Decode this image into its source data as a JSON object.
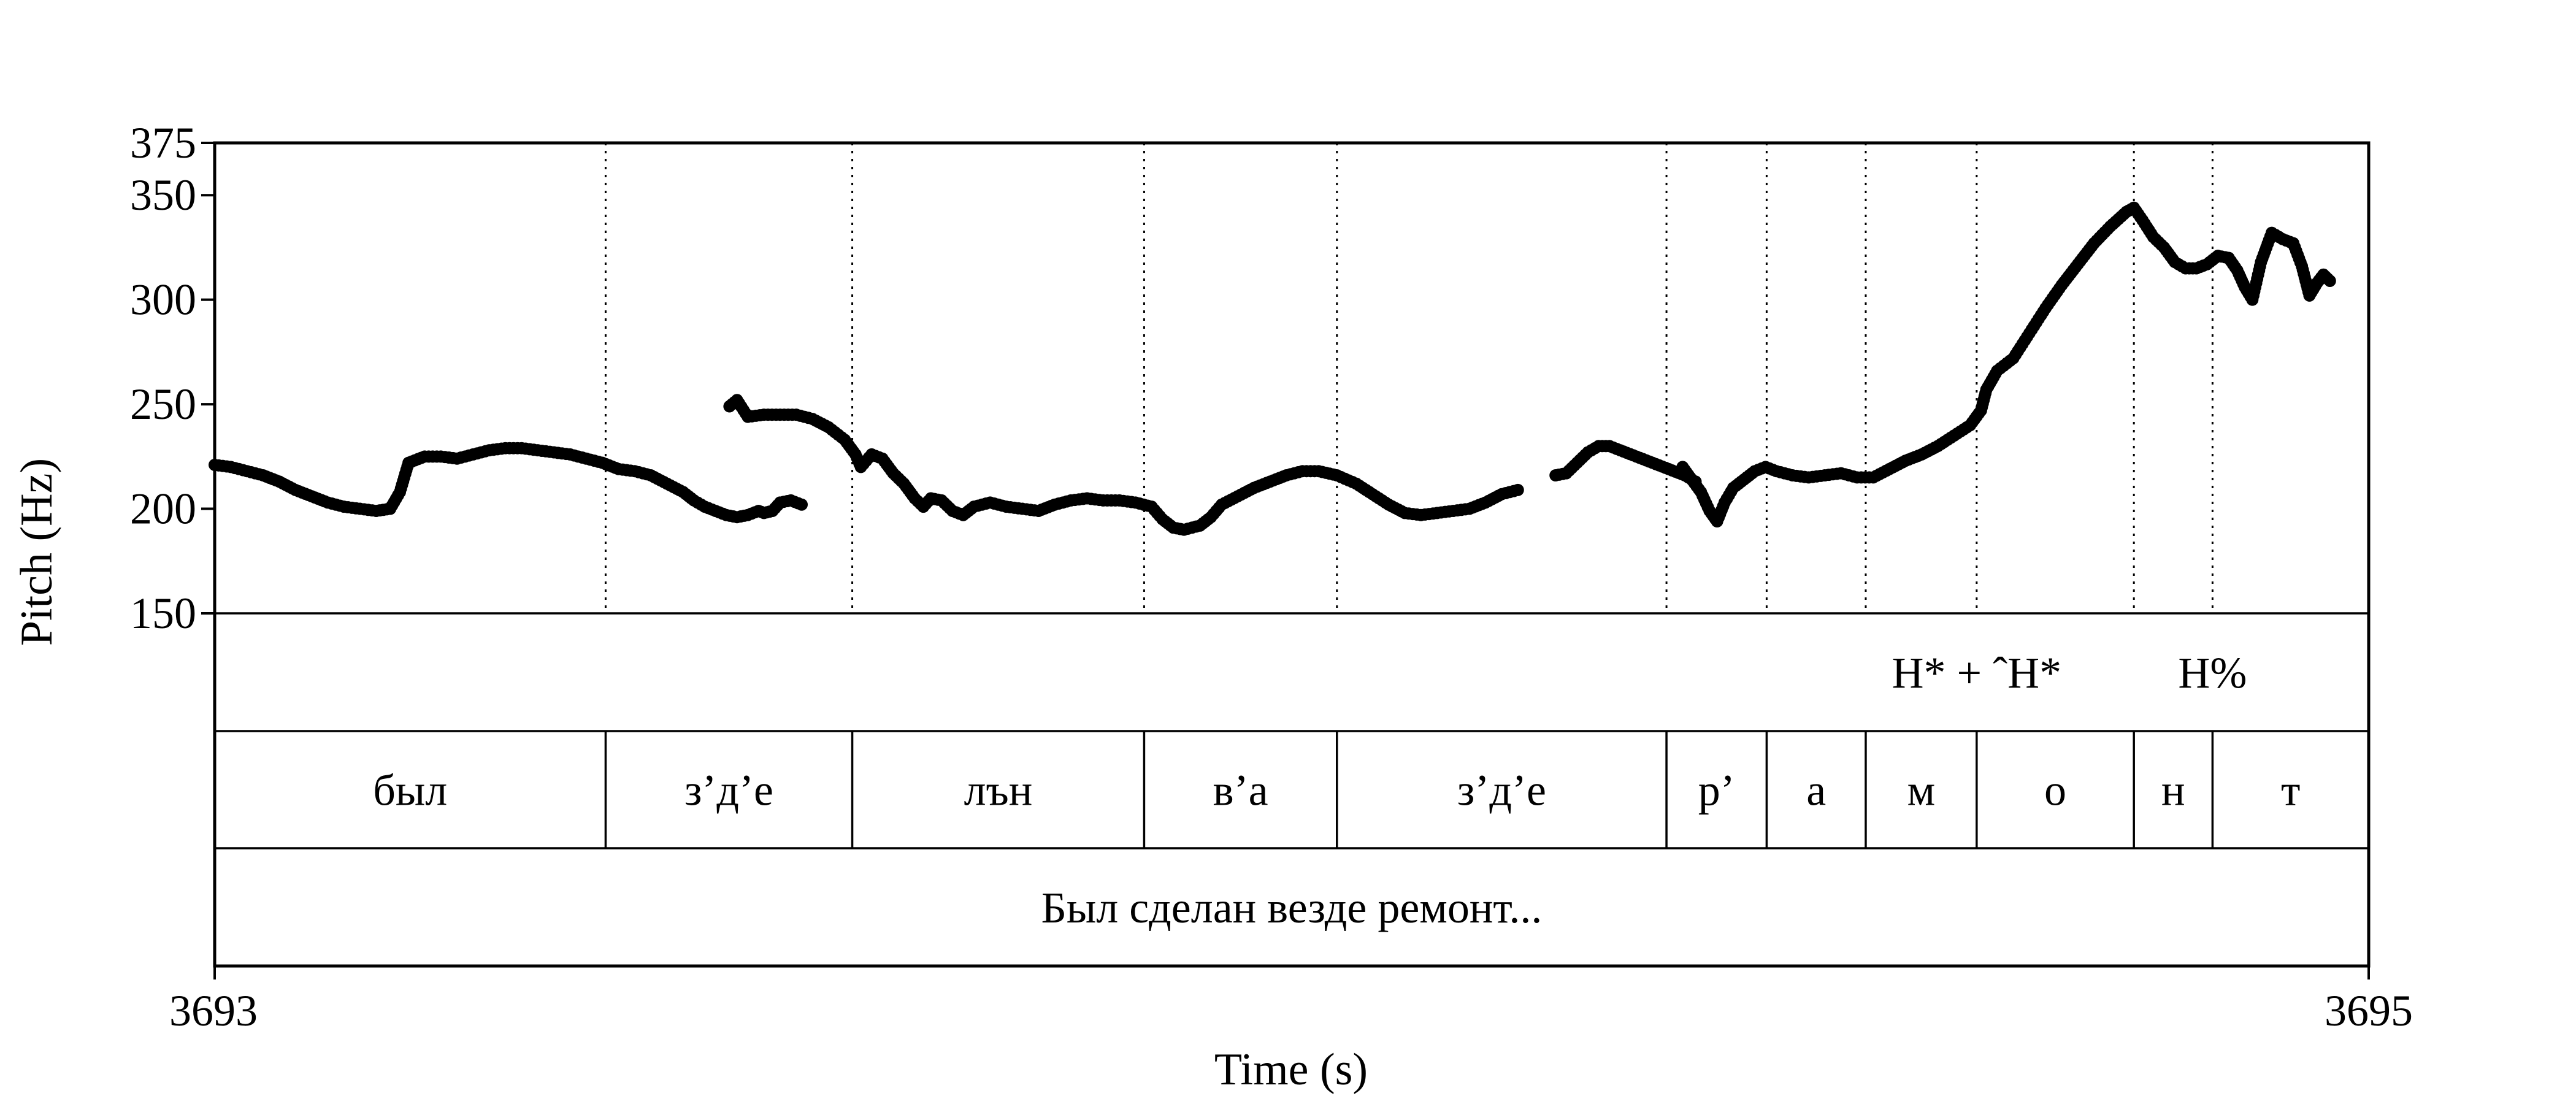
{
  "chart_data": {
    "type": "scatter",
    "title": "",
    "xlabel": "Time (s)",
    "ylabel": "Pitch (Hz)",
    "xlim": [
      3693,
      3695
    ],
    "ylim": [
      150,
      375
    ],
    "x_tick_labels": [
      "3693",
      "3695"
    ],
    "y_ticks": [
      150,
      200,
      250,
      300,
      350,
      375
    ],
    "y_tick_labels": [
      "150",
      "200",
      "250",
      "300",
      "350",
      "375"
    ],
    "boundaries": [
      3693.363,
      3693.592,
      3693.863,
      3694.042,
      3694.348,
      3694.441,
      3694.533,
      3694.636,
      3694.782,
      3694.855
    ],
    "tiers": [
      {
        "name": "tones",
        "intervals": [
          {
            "label": "H* + ˆH*",
            "center": 3694.636
          },
          {
            "label": "H%",
            "center": 3694.855
          }
        ]
      },
      {
        "name": "segments",
        "intervals": [
          {
            "label": "был",
            "start": 3693.0,
            "end": 3693.363
          },
          {
            "label": "з’д’е",
            "start": 3693.363,
            "end": 3693.592
          },
          {
            "label": "лън",
            "start": 3693.592,
            "end": 3693.863
          },
          {
            "label": "в’а",
            "start": 3693.863,
            "end": 3694.042
          },
          {
            "label": "з’д’е",
            "start": 3694.042,
            "end": 3694.348
          },
          {
            "label": "р’",
            "start": 3694.348,
            "end": 3694.441
          },
          {
            "label": "а",
            "start": 3694.441,
            "end": 3694.533
          },
          {
            "label": "м",
            "start": 3694.533,
            "end": 3694.636
          },
          {
            "label": "о",
            "start": 3694.636,
            "end": 3694.782
          },
          {
            "label": "н",
            "start": 3694.782,
            "end": 3694.855
          },
          {
            "label": "т",
            "start": 3694.855,
            "end": 3695.0
          }
        ]
      },
      {
        "name": "sentence",
        "intervals": [
          {
            "label": "Был сделан везде ремонт...",
            "start": 3693.0,
            "end": 3695.0
          }
        ]
      }
    ],
    "series": [
      {
        "segments": [
          [
            [
              3693.0,
              221
            ],
            [
              3693.015,
              220
            ],
            [
              3693.03,
              218
            ],
            [
              3693.045,
              216
            ],
            [
              3693.06,
              213
            ],
            [
              3693.075,
              209
            ],
            [
              3693.09,
              206
            ],
            [
              3693.105,
              203
            ],
            [
              3693.12,
              201
            ],
            [
              3693.135,
              200
            ],
            [
              3693.15,
              199
            ],
            [
              3693.163,
              200
            ],
            [
              3693.172,
              208
            ],
            [
              3693.18,
              222
            ],
            [
              3693.195,
              225
            ],
            [
              3693.21,
              225
            ],
            [
              3693.225,
              224
            ],
            [
              3693.24,
              226
            ],
            [
              3693.255,
              228
            ],
            [
              3693.27,
              229
            ],
            [
              3693.285,
              229
            ],
            [
              3693.3,
              228
            ],
            [
              3693.315,
              227
            ],
            [
              3693.33,
              226
            ],
            [
              3693.345,
              224
            ],
            [
              3693.36,
              222
            ],
            [
              3693.375,
              219
            ],
            [
              3693.39,
              218
            ],
            [
              3693.405,
              216
            ],
            [
              3693.42,
              212
            ],
            [
              3693.435,
              208
            ],
            [
              3693.445,
              204
            ],
            [
              3693.455,
              201
            ],
            [
              3693.465,
              199
            ],
            [
              3693.475,
              197
            ],
            [
              3693.485,
              196
            ],
            [
              3693.495,
              197
            ],
            [
              3693.505,
              199
            ],
            [
              3693.51,
              198
            ],
            [
              3693.518,
              199
            ],
            [
              3693.525,
              203
            ],
            [
              3693.535,
              204
            ],
            [
              3693.545,
              202
            ]
          ],
          [
            [
              3693.478,
              249
            ],
            [
              3693.485,
              252
            ],
            [
              3693.495,
              244
            ],
            [
              3693.51,
              245
            ],
            [
              3693.525,
              245
            ],
            [
              3693.54,
              245
            ],
            [
              3693.555,
              243
            ],
            [
              3693.57,
              239
            ],
            [
              3693.585,
              233
            ],
            [
              3693.595,
              226
            ],
            [
              3693.6,
              220
            ],
            [
              3693.61,
              226
            ],
            [
              3693.62,
              224
            ],
            [
              3693.63,
              217
            ],
            [
              3693.64,
              212
            ],
            [
              3693.65,
              205
            ],
            [
              3693.658,
              201
            ],
            [
              3693.665,
              205
            ],
            [
              3693.675,
              204
            ],
            [
              3693.685,
              199
            ],
            [
              3693.695,
              197
            ],
            [
              3693.705,
              201
            ],
            [
              3693.72,
              203
            ],
            [
              3693.735,
              201
            ],
            [
              3693.75,
              200
            ],
            [
              3693.765,
              199
            ],
            [
              3693.78,
              202
            ],
            [
              3693.795,
              204
            ],
            [
              3693.81,
              205
            ],
            [
              3693.825,
              204
            ],
            [
              3693.84,
              204
            ],
            [
              3693.855,
              203
            ],
            [
              3693.87,
              201
            ],
            [
              3693.88,
              195
            ],
            [
              3693.89,
              191
            ],
            [
              3693.9,
              190
            ],
            [
              3693.915,
              192
            ],
            [
              3693.925,
              196
            ],
            [
              3693.935,
              202
            ],
            [
              3693.95,
              206
            ],
            [
              3693.965,
              210
            ],
            [
              3693.98,
              213
            ],
            [
              3693.995,
              216
            ],
            [
              3694.01,
              218
            ],
            [
              3694.025,
              218
            ],
            [
              3694.042,
              216
            ],
            [
              3694.06,
              212
            ],
            [
              3694.075,
              207
            ],
            [
              3694.09,
              202
            ],
            [
              3694.105,
              198
            ],
            [
              3694.12,
              197
            ],
            [
              3694.135,
              198
            ],
            [
              3694.15,
              199
            ],
            [
              3694.165,
              200
            ],
            [
              3694.18,
              203
            ],
            [
              3694.195,
              207
            ],
            [
              3694.21,
              209
            ]
          ],
          [
            [
              3694.245,
              216
            ],
            [
              3694.255,
              217
            ],
            [
              3694.265,
              222
            ],
            [
              3694.275,
              227
            ],
            [
              3694.285,
              230
            ],
            [
              3694.295,
              230
            ],
            [
              3694.305,
              228
            ],
            [
              3694.32,
              225
            ],
            [
              3694.335,
              222
            ],
            [
              3694.35,
              219
            ],
            [
              3694.365,
              216
            ],
            [
              3694.375,
              213
            ]
          ],
          [
            [
              3694.363,
              220
            ],
            [
              3694.37,
              215
            ],
            [
              3694.38,
              208
            ],
            [
              3694.388,
              199
            ],
            [
              3694.395,
              194
            ],
            [
              3694.402,
              203
            ],
            [
              3694.41,
              210
            ],
            [
              3694.42,
              214
            ],
            [
              3694.43,
              218
            ],
            [
              3694.44,
              220
            ],
            [
              3694.45,
              218
            ],
            [
              3694.465,
              216
            ],
            [
              3694.48,
              215
            ],
            [
              3694.495,
              216
            ],
            [
              3694.51,
              217
            ],
            [
              3694.525,
              215
            ],
            [
              3694.54,
              215
            ],
            [
              3694.555,
              219
            ],
            [
              3694.57,
              223
            ],
            [
              3694.585,
              226
            ],
            [
              3694.6,
              230
            ],
            [
              3694.615,
              235
            ],
            [
              3694.63,
              240
            ],
            [
              3694.64,
              247
            ],
            [
              3694.645,
              257
            ],
            [
              3694.655,
              266
            ],
            [
              3694.67,
              272
            ],
            [
              3694.685,
              284
            ],
            [
              3694.7,
              296
            ],
            [
              3694.715,
              307
            ],
            [
              3694.73,
              317
            ],
            [
              3694.745,
              327
            ],
            [
              3694.76,
              335
            ],
            [
              3694.775,
              342
            ],
            [
              3694.782,
              344
            ],
            [
              3694.79,
              338
            ],
            [
              3694.8,
              330
            ],
            [
              3694.81,
              325
            ],
            [
              3694.82,
              318
            ],
            [
              3694.83,
              315
            ],
            [
              3694.84,
              315
            ],
            [
              3694.85,
              317
            ],
            [
              3694.86,
              321
            ],
            [
              3694.87,
              320
            ],
            [
              3694.878,
              314
            ],
            [
              3694.885,
              306
            ],
            [
              3694.892,
              300
            ],
            [
              3694.9,
              318
            ],
            [
              3694.91,
              332
            ],
            [
              3694.92,
              329
            ],
            [
              3694.93,
              327
            ],
            [
              3694.938,
              316
            ],
            [
              3694.945,
              302
            ],
            [
              3694.952,
              308
            ],
            [
              3694.958,
              312
            ],
            [
              3694.964,
              309
            ]
          ]
        ]
      }
    ]
  }
}
